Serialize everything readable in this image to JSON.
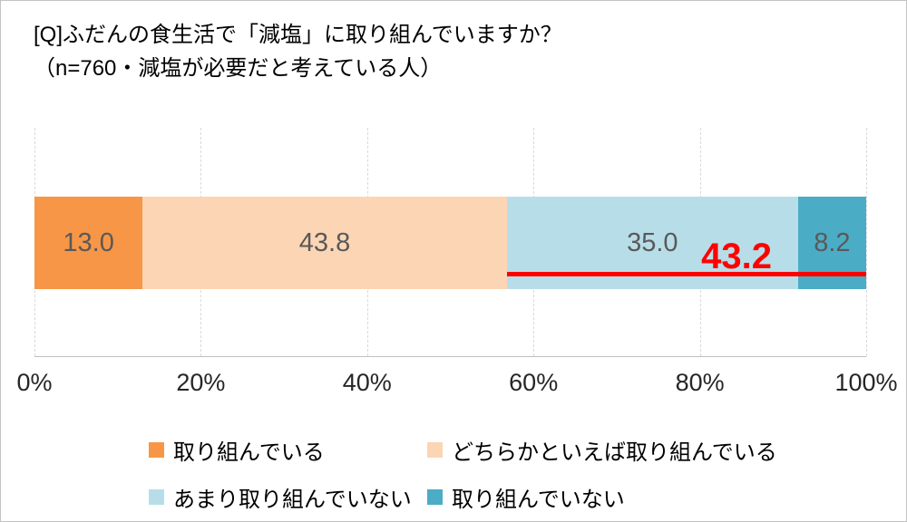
{
  "title": {
    "line1": "[Q]ふだんの食生活で「減塩」に取り組んでいますか？",
    "line2": "（n=760・減塩が必要だと考えている人）"
  },
  "chart_data": {
    "type": "bar",
    "orientation": "horizontal",
    "stacked": true,
    "unit": "%",
    "n": 760,
    "series": [
      {
        "name": "取り組んでいる",
        "value": 13.0,
        "label": "13.0",
        "color": "#F79646"
      },
      {
        "name": "どちらかといえば取り組んでいる",
        "value": 43.8,
        "label": "43.8",
        "color": "#FCD5B4"
      },
      {
        "name": "あまり取り組んでいない",
        "value": 35.0,
        "label": "35.0",
        "color": "#B7DEE8"
      },
      {
        "name": "取り組んでいない",
        "value": 8.2,
        "label": "8.2",
        "color": "#4BACC6"
      }
    ],
    "value_label_color": "#595959",
    "x_ticks": [
      "0%",
      "20%",
      "40%",
      "60%",
      "80%",
      "100%"
    ],
    "xlim": [
      0,
      100
    ],
    "grid": true,
    "grid_color": "#d9d9d9",
    "annotation": {
      "label": "43.2",
      "value": 43.2,
      "span_start": 56.8,
      "span_end": 100,
      "color": "#FF0000"
    }
  },
  "legend": {
    "items": [
      {
        "label": "取り組んでいる",
        "color": "#F79646"
      },
      {
        "label": "どちらかといえば取り組んでいる",
        "color": "#FCD5B4"
      },
      {
        "label": "あまり取り組んでいない",
        "color": "#B7DEE8"
      },
      {
        "label": "取り組んでいない",
        "color": "#4BACC6"
      }
    ]
  }
}
